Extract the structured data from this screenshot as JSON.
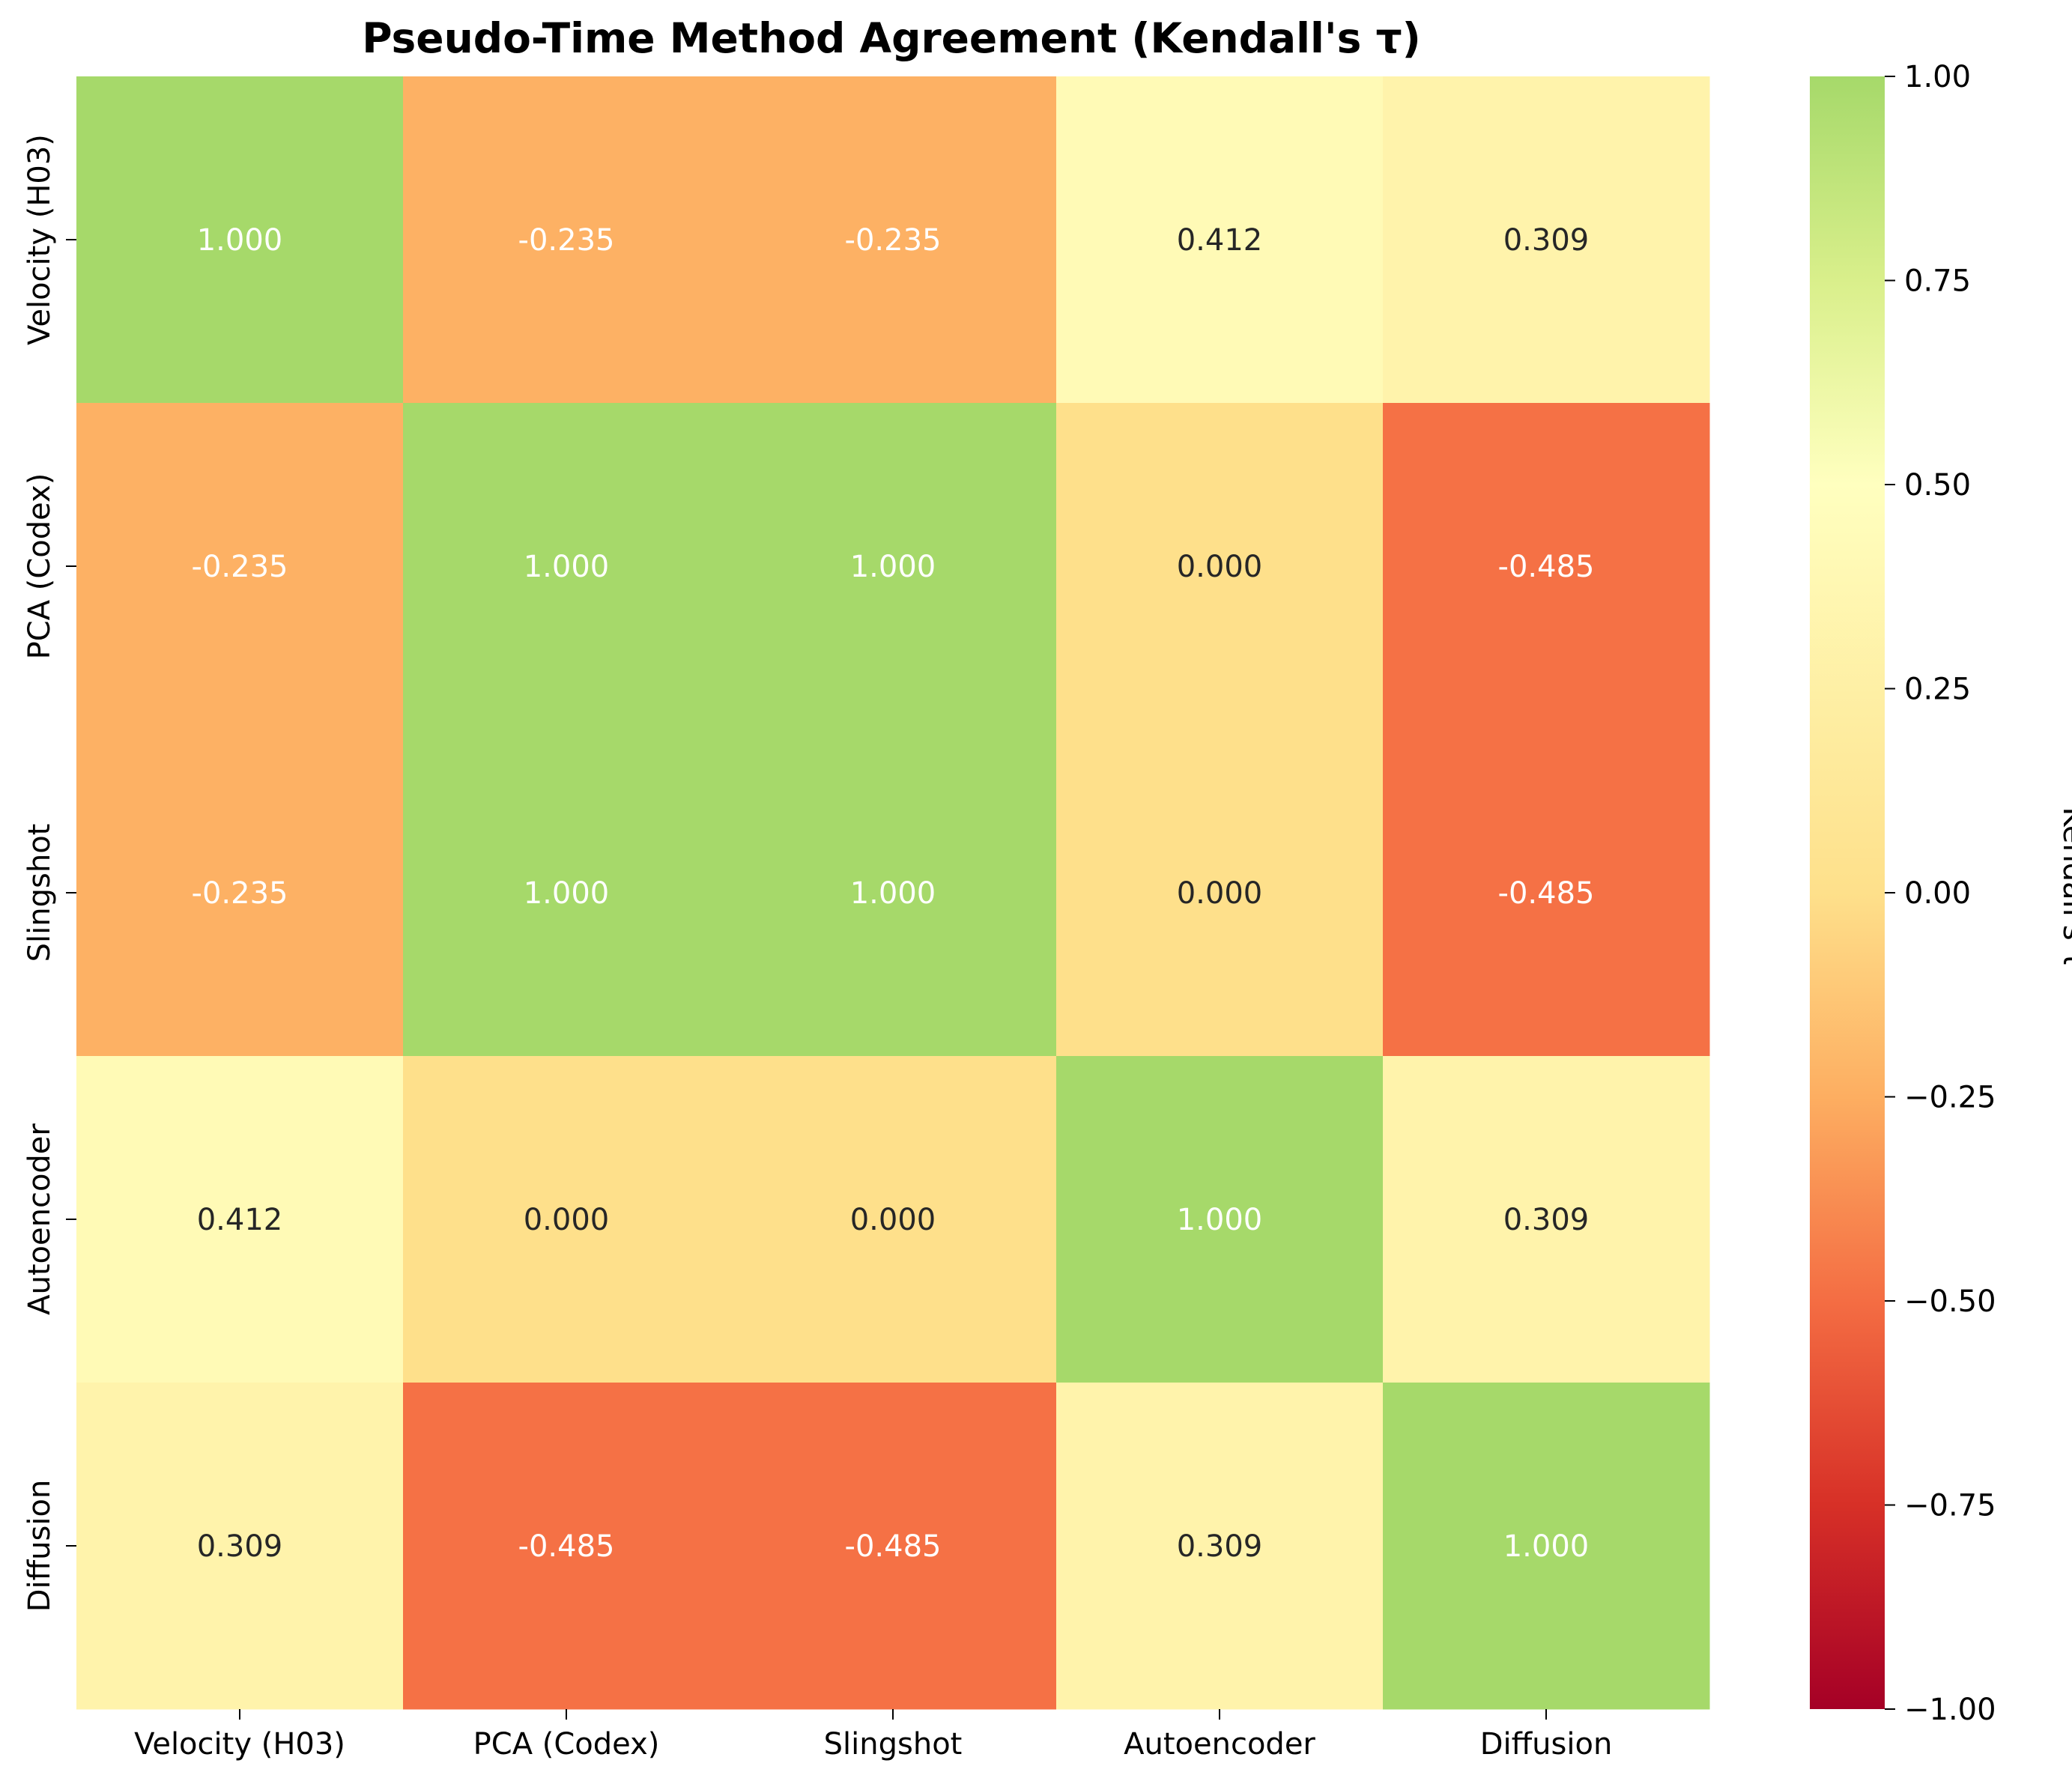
{
  "chart_data": {
    "type": "heatmap",
    "title": "Pseudo-Time Method Agreement (Kendall's τ)",
    "xlabel": "",
    "ylabel": "",
    "x_categories": [
      "Velocity (H03)",
      "PCA (Codex)",
      "Slingshot",
      "Autoencoder",
      "Diffusion"
    ],
    "y_categories": [
      "Velocity (H03)",
      "PCA (Codex)",
      "Slingshot",
      "Autoencoder",
      "Diffusion"
    ],
    "values": [
      [
        1.0,
        -0.235,
        -0.235,
        0.412,
        0.309
      ],
      [
        -0.235,
        1.0,
        1.0,
        0.0,
        -0.485
      ],
      [
        -0.235,
        1.0,
        1.0,
        0.0,
        -0.485
      ],
      [
        0.412,
        0.0,
        0.0,
        1.0,
        0.309
      ],
      [
        0.309,
        -0.485,
        -0.485,
        0.309,
        1.0
      ]
    ],
    "value_labels": [
      [
        "1.000",
        "-0.235",
        "-0.235",
        "0.412",
        "0.309"
      ],
      [
        "-0.235",
        "1.000",
        "1.000",
        "0.000",
        "-0.485"
      ],
      [
        "-0.235",
        "1.000",
        "1.000",
        "0.000",
        "-0.485"
      ],
      [
        "0.412",
        "0.000",
        "0.000",
        "1.000",
        "0.309"
      ],
      [
        "0.309",
        "-0.485",
        "-0.485",
        "0.309",
        "1.000"
      ]
    ],
    "colorbar": {
      "label": "Kendall's τ",
      "range": [
        -1.0,
        1.0
      ],
      "ticks": [
        1.0,
        0.75,
        0.5,
        0.25,
        0.0,
        -0.25,
        -0.5,
        -0.75,
        -1.0
      ],
      "tick_labels": [
        "1.00",
        "0.75",
        "0.50",
        "0.25",
        "0.00",
        "−0.25",
        "−0.50",
        "−0.75",
        "−1.00"
      ],
      "colormap": "RdYlGn (clipped at 0.8)",
      "color_stops": [
        {
          "v": -1.0,
          "color": "#a50026"
        },
        {
          "v": -0.75,
          "color": "#d73027"
        },
        {
          "v": -0.5,
          "color": "#f46d43"
        },
        {
          "v": -0.25,
          "color": "#fdae61"
        },
        {
          "v": 0.0,
          "color": "#fee08b"
        },
        {
          "v": 0.5,
          "color": "#ffffbf"
        },
        {
          "v": 0.75,
          "color": "#d9ef8b"
        },
        {
          "v": 1.0,
          "color": "#a6d96a"
        }
      ]
    },
    "grid": false
  }
}
